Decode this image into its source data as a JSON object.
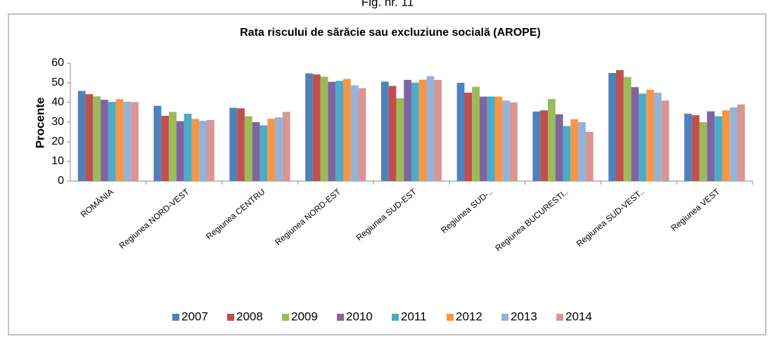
{
  "chart_data": {
    "type": "bar",
    "figure_label": "Fig. nr. 11",
    "title": "Rata riscului de sărăcie sau excluziune socială (AROPE)",
    "y_label": "Procente",
    "categories": [
      "ROMÂNIA",
      "Regiunea NORD-VEST",
      "Regiunea CENTRU",
      "Regiunea NORD-EST",
      "Regiunea SUD-EST",
      "Regiunea SUD-..",
      "Regiunea BUCURESTI..",
      "Regiunea SUD-VEST..",
      "Regiunea VEST"
    ],
    "series": [
      {
        "name": "2007",
        "color": "#4f81bd",
        "values": [
          45.9,
          38.3,
          37.3,
          54.8,
          50.6,
          50.0,
          35.4,
          55.0,
          34.3
        ]
      },
      {
        "name": "2008",
        "color": "#c0504d",
        "values": [
          44.2,
          33.2,
          37.0,
          54.3,
          48.4,
          45.0,
          36.0,
          56.5,
          33.5
        ]
      },
      {
        "name": "2009",
        "color": "#9bbb59",
        "values": [
          43.1,
          35.2,
          33.0,
          53.1,
          42.2,
          48.0,
          41.8,
          53.0,
          30.0
        ]
      },
      {
        "name": "2010",
        "color": "#8064a2",
        "values": [
          41.4,
          30.5,
          30.0,
          50.5,
          51.5,
          43.0,
          34.0,
          47.8,
          35.5
        ]
      },
      {
        "name": "2011",
        "color": "#4bacc6",
        "values": [
          40.3,
          34.3,
          28.4,
          51.0,
          50.1,
          43.0,
          28.0,
          44.5,
          33.0
        ]
      },
      {
        "name": "2012",
        "color": "#f79646",
        "values": [
          41.7,
          31.6,
          31.7,
          52.0,
          51.6,
          43.0,
          31.5,
          46.5,
          36.0
        ]
      },
      {
        "name": "2013",
        "color": "#95b3d7",
        "values": [
          40.4,
          30.7,
          32.4,
          48.7,
          53.4,
          41.0,
          30.0,
          45.0,
          37.5
        ]
      },
      {
        "name": "2014",
        "color": "#d99694",
        "values": [
          40.2,
          31.1,
          35.2,
          47.3,
          51.5,
          40.0,
          25.0,
          41.0,
          39.0
        ]
      }
    ],
    "ylim": [
      0,
      60
    ],
    "yticks": [
      0,
      10,
      20,
      30,
      40,
      50,
      60
    ],
    "grid": false,
    "legend": "bottom"
  }
}
